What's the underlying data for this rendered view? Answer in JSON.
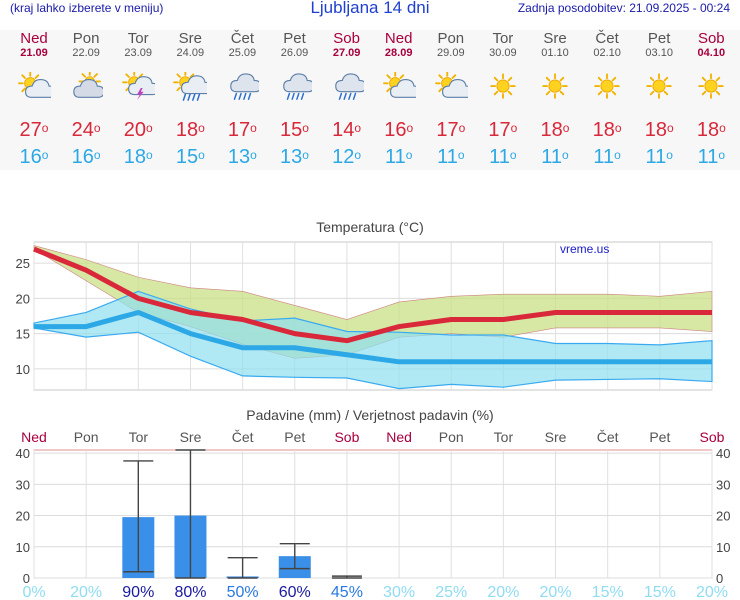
{
  "header": {
    "left_note": "(kraj lahko izberete v meniju)",
    "title": "Ljubljana 14 dni",
    "updated": "Zadnja posodobitev: 21.09.2025 - 00:24"
  },
  "days": [
    {
      "day": "Ned",
      "date": "21.09",
      "weekend": true,
      "icon": "sun-cloud-icon",
      "tmax": "27",
      "tmin": "16"
    },
    {
      "day": "Pon",
      "date": "22.09",
      "weekend": false,
      "icon": "cloud-sun-icon",
      "tmax": "24",
      "tmin": "16"
    },
    {
      "day": "Tor",
      "date": "23.09",
      "weekend": false,
      "icon": "sun-thunder-icon",
      "tmax": "20",
      "tmin": "18"
    },
    {
      "day": "Sre",
      "date": "24.09",
      "weekend": false,
      "icon": "sun-rain-icon",
      "tmax": "18",
      "tmin": "15"
    },
    {
      "day": "Čet",
      "date": "25.09",
      "weekend": false,
      "icon": "cloud-rain-icon",
      "tmax": "17",
      "tmin": "13"
    },
    {
      "day": "Pet",
      "date": "26.09",
      "weekend": false,
      "icon": "cloud-rain-icon",
      "tmax": "15",
      "tmin": "13"
    },
    {
      "day": "Sob",
      "date": "27.09",
      "weekend": true,
      "icon": "cloud-rain-icon",
      "tmax": "14",
      "tmin": "12"
    },
    {
      "day": "Ned",
      "date": "28.09",
      "weekend": true,
      "icon": "sun-cloud-icon",
      "tmax": "16",
      "tmin": "11"
    },
    {
      "day": "Pon",
      "date": "29.09",
      "weekend": false,
      "icon": "sun-cloud-icon",
      "tmax": "17",
      "tmin": "11"
    },
    {
      "day": "Tor",
      "date": "30.09",
      "weekend": false,
      "icon": "sun-icon",
      "tmax": "17",
      "tmin": "11"
    },
    {
      "day": "Sre",
      "date": "01.10",
      "weekend": false,
      "icon": "sun-icon",
      "tmax": "18",
      "tmin": "11"
    },
    {
      "day": "Čet",
      "date": "02.10",
      "weekend": false,
      "icon": "sun-icon",
      "tmax": "18",
      "tmin": "11"
    },
    {
      "day": "Pet",
      "date": "03.10",
      "weekend": false,
      "icon": "sun-icon",
      "tmax": "18",
      "tmin": "11"
    },
    {
      "day": "Sob",
      "date": "04.10",
      "weekend": true,
      "icon": "sun-icon",
      "tmax": "18",
      "tmin": "11"
    }
  ],
  "colors": {
    "tmax": "#d8283a",
    "tmin": "#2da8e6",
    "max_band": "#c8e085",
    "min_band": "#8fe0f0",
    "overlap": "#88d28a",
    "bar": "#3a8fe8",
    "weekend": "#a8003c"
  },
  "chart_data": [
    {
      "type": "line",
      "title": "Temperatura (°C)",
      "watermark": "vreme.us",
      "ylim": [
        7,
        28
      ],
      "yticks": [
        10,
        15,
        20,
        25
      ],
      "grid": true,
      "series": [
        {
          "key": "tmax",
          "values": [
            27,
            24,
            20,
            18,
            17,
            15,
            14,
            16,
            17,
            17,
            18,
            18,
            18,
            18
          ]
        },
        {
          "key": "tmin",
          "values": [
            16,
            16,
            18,
            15,
            13,
            13,
            12,
            11,
            11,
            11,
            11,
            11,
            11,
            11
          ]
        }
      ],
      "max_band_upper": [
        27.5,
        25.5,
        23,
        21.5,
        21,
        19,
        17,
        19.5,
        20.3,
        20.6,
        20.6,
        20.6,
        20.3,
        21
      ],
      "max_band_lower": [
        27,
        22.5,
        18,
        16,
        13.5,
        11.5,
        12,
        14.5,
        15,
        14.5,
        15.8,
        15.8,
        15.8,
        15.3
      ],
      "min_band_upper": [
        16.5,
        18,
        21,
        18.5,
        16.8,
        17.2,
        15.3,
        15.2,
        14.8,
        14.8,
        13.6,
        13.6,
        13.4,
        14
      ],
      "min_band_lower": [
        15.8,
        14.5,
        15.2,
        11.8,
        9,
        8.8,
        8.7,
        7.2,
        7.8,
        7.4,
        8.4,
        8.5,
        8.6,
        8.2
      ]
    },
    {
      "type": "bar",
      "title": "Padavine (mm) / Verjetnost padavin (%)",
      "categories": [
        "Ned",
        "Pon",
        "Tor",
        "Sre",
        "Čet",
        "Pet",
        "Sob",
        "Ned",
        "Pon",
        "Tor",
        "Sre",
        "Čet",
        "Pet",
        "Sob"
      ],
      "weekend": [
        true,
        false,
        false,
        false,
        false,
        false,
        true,
        true,
        false,
        false,
        false,
        false,
        false,
        true
      ],
      "ylim": [
        0,
        41
      ],
      "yticks": [
        0,
        10,
        20,
        30,
        40
      ],
      "values": [
        0,
        0,
        19.5,
        20,
        0.5,
        7,
        0,
        0,
        0,
        0,
        0,
        0,
        0,
        0
      ],
      "error_low": [
        0,
        0,
        2,
        0,
        0,
        3,
        0,
        0,
        0,
        0,
        0,
        0,
        0,
        0
      ],
      "error_high": [
        0,
        0,
        37.5,
        41,
        6.5,
        11,
        0.6,
        0,
        0,
        0,
        0,
        0,
        0,
        0
      ],
      "probability": [
        "0%",
        "20%",
        "90%",
        "80%",
        "50%",
        "60%",
        "45%",
        "30%",
        "25%",
        "20%",
        "20%",
        "15%",
        "15%",
        "20%"
      ],
      "probability_values": [
        0,
        20,
        90,
        80,
        50,
        60,
        45,
        30,
        25,
        20,
        20,
        15,
        15,
        20
      ]
    }
  ]
}
